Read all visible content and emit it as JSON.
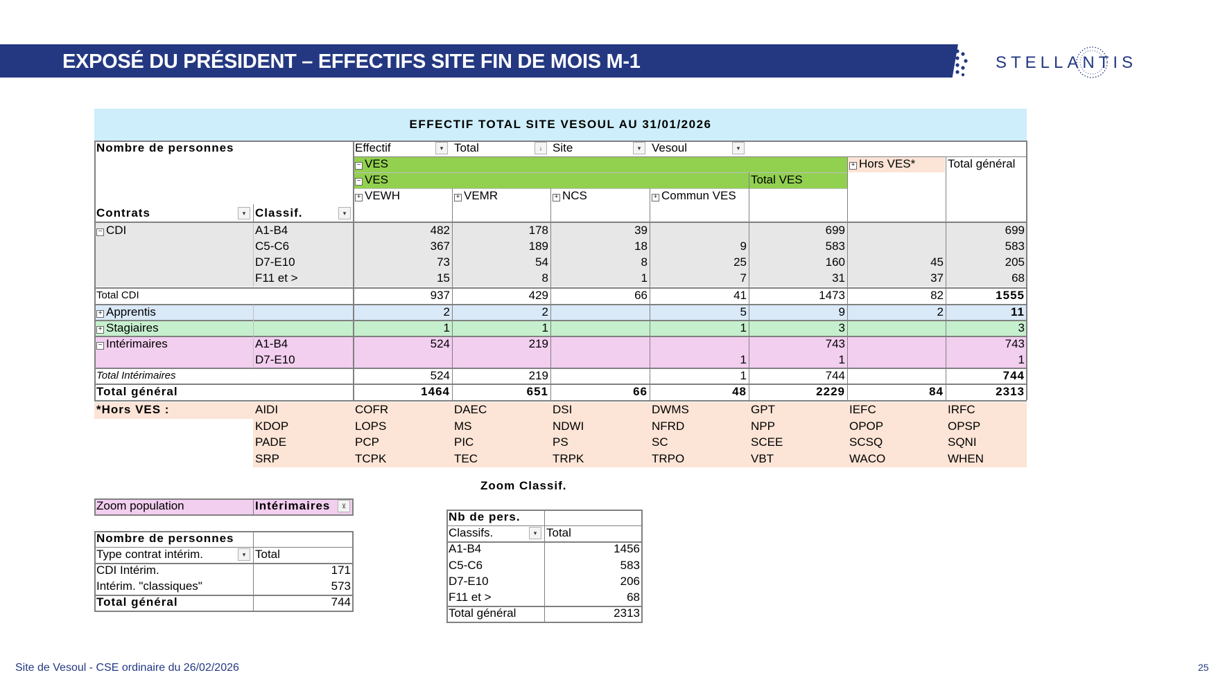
{
  "header": {
    "title": "EXPOSÉ DU PRÉSIDENT – EFFECTIFS SITE FIN DE MOIS M-1",
    "brand": "STELLANTIS",
    "brand_color": "#243882"
  },
  "main_table": {
    "title": "EFFECTIF TOTAL SITE VESOUL AU 31/01/2026",
    "corner_label": "Nombre de personnes",
    "filters": [
      "Effectif",
      "Total",
      "Site",
      "Vesoul"
    ],
    "group_ves": "VES",
    "subgroup_ves": "VES",
    "total_ves": "Total VES",
    "hors_ves": "Hors VES*",
    "total_general_col": "Total général",
    "columns": [
      "VEWH",
      "VEMR",
      "NCS",
      "Commun VES"
    ],
    "row_headers": [
      "Contrats",
      "Classif."
    ],
    "rows": [
      {
        "group": "CDI",
        "classif": "A1-B4",
        "values": [
          "482",
          "178",
          "39",
          "",
          "699",
          "",
          "699"
        ]
      },
      {
        "group": "",
        "classif": "C5-C6",
        "values": [
          "367",
          "189",
          "18",
          "9",
          "583",
          "",
          "583"
        ]
      },
      {
        "group": "",
        "classif": "D7-E10",
        "values": [
          "73",
          "54",
          "8",
          "25",
          "160",
          "45",
          "205"
        ]
      },
      {
        "group": "",
        "classif": "F11 et >",
        "values": [
          "15",
          "8",
          "1",
          "7",
          "31",
          "37",
          "68"
        ]
      },
      {
        "group": "Total CDI",
        "classif": "",
        "values": [
          "937",
          "429",
          "66",
          "41",
          "1473",
          "82",
          "1555"
        ]
      },
      {
        "group": "Apprentis",
        "classif": "",
        "values": [
          "2",
          "2",
          "",
          "5",
          "9",
          "2",
          "11"
        ]
      },
      {
        "group": "Stagiaires",
        "classif": "",
        "values": [
          "1",
          "1",
          "",
          "1",
          "3",
          "",
          "3"
        ]
      },
      {
        "group": "Intérimaires",
        "classif": "A1-B4",
        "values": [
          "524",
          "219",
          "",
          "",
          "743",
          "",
          "743"
        ]
      },
      {
        "group": "",
        "classif": "D7-E10",
        "values": [
          "",
          "",
          "",
          "1",
          "1",
          "",
          "1"
        ]
      },
      {
        "group": "Total Intérimaires",
        "classif": "",
        "values": [
          "524",
          "219",
          "",
          "1",
          "744",
          "",
          "744"
        ]
      },
      {
        "group": "Total général",
        "classif": "",
        "values": [
          "1464",
          "651",
          "66",
          "48",
          "2229",
          "84",
          "2313"
        ]
      }
    ]
  },
  "hors_ves": {
    "label": "*Hors VES :",
    "codes": [
      [
        "AIDI",
        "COFR",
        "DAEC",
        "DSI",
        "DWMS",
        "GPT",
        "IEFC",
        "IRFC"
      ],
      [
        "KDOP",
        "LOPS",
        "MS",
        "NDWI",
        "NFRD",
        "NPP",
        "OPOP",
        "OPSP"
      ],
      [
        "PADE",
        "PCP",
        "PIC",
        "PS",
        "SC",
        "SCEE",
        "SCSQ",
        "SQNI"
      ],
      [
        "SRP",
        "TCPK",
        "TEC",
        "TRPK",
        "TRPO",
        "VBT",
        "WACO",
        "WHEN"
      ]
    ]
  },
  "zoom_population": {
    "label": "Zoom population",
    "value": "Intérimaires",
    "header": "Nombre de personnes",
    "col1": "Type contrat intérim.",
    "col2": "Total",
    "rows": [
      {
        "label": "CDI Intérim.",
        "value": "171"
      },
      {
        "label": "Intérim. \"classiques\"",
        "value": "573"
      },
      {
        "label": "Total général",
        "value": "744"
      }
    ]
  },
  "zoom_classif": {
    "title": "Zoom Classif.",
    "header": "Nb de pers.",
    "col1": "Classifs.",
    "col2": "Total",
    "rows": [
      {
        "label": "A1-B4",
        "value": "1456"
      },
      {
        "label": "C5-C6",
        "value": "583"
      },
      {
        "label": "D7-E10",
        "value": "206"
      },
      {
        "label": "F11 et >",
        "value": "68"
      },
      {
        "label": "Total général",
        "value": "2313"
      }
    ]
  },
  "footer": {
    "left": "Site de Vesoul - CSE ordinaire du 26/02/2026",
    "page": "25"
  }
}
